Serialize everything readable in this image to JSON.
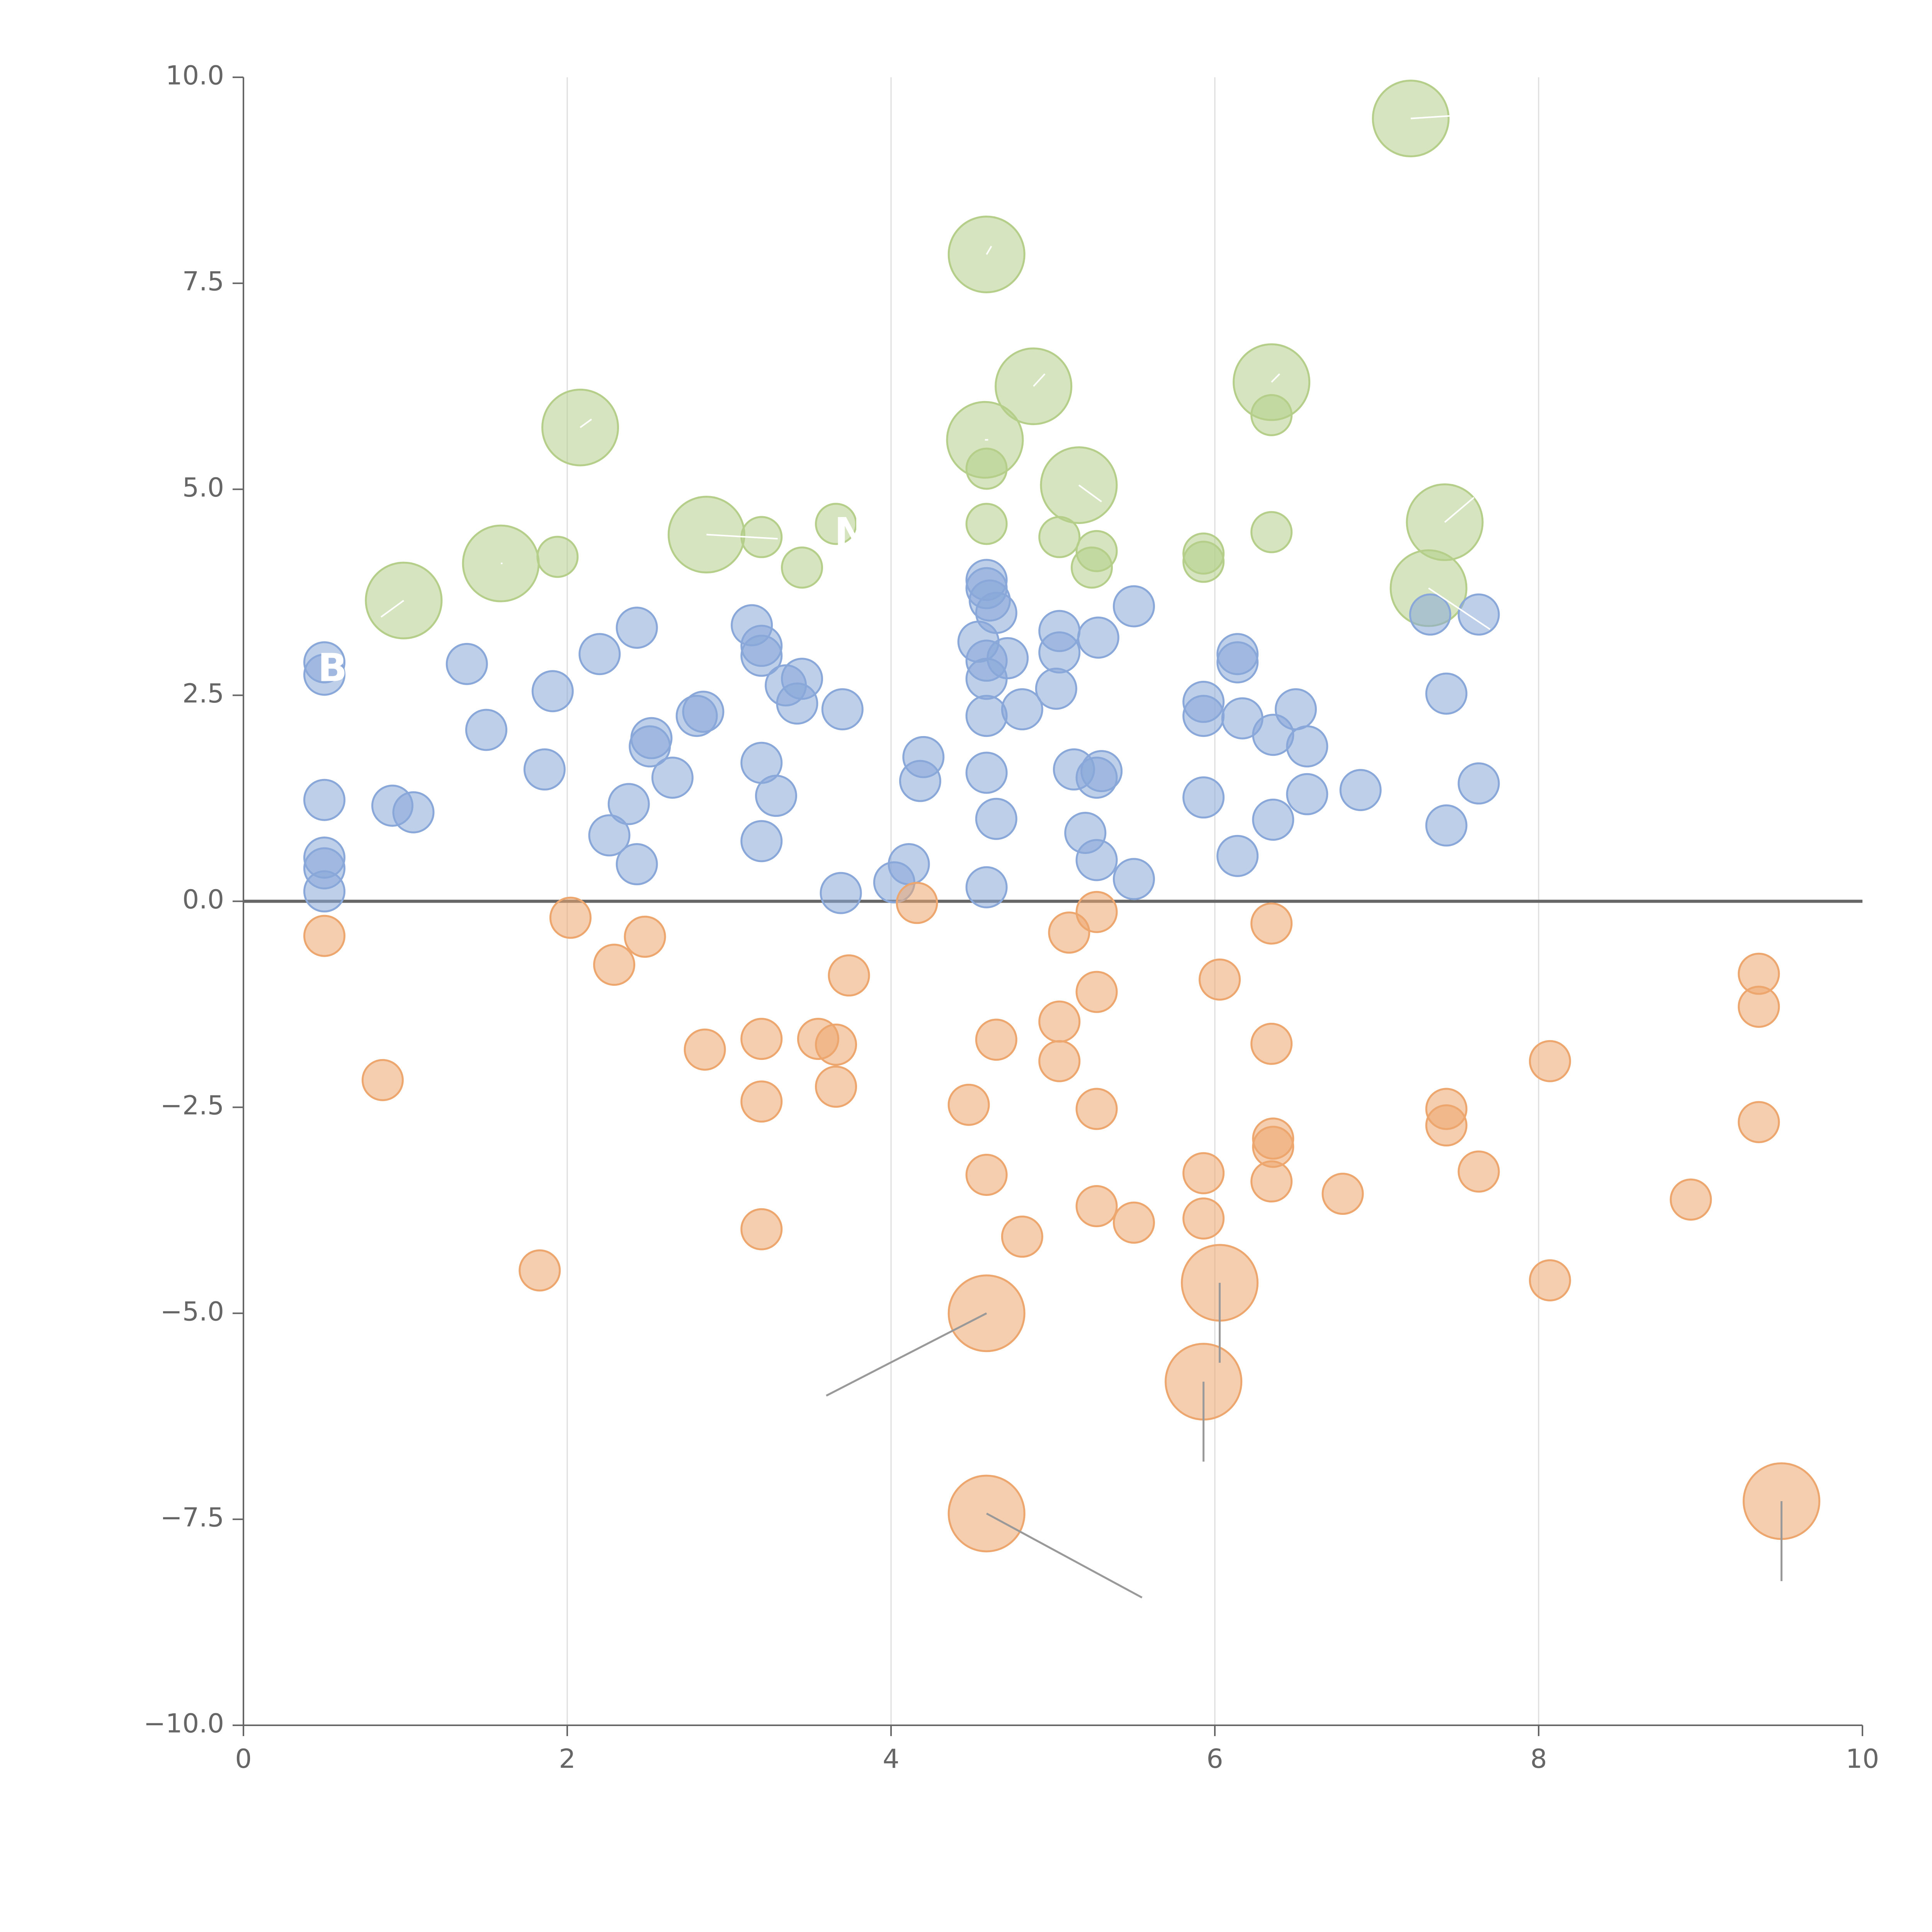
{
  "chart_data": {
    "type": "scatter",
    "title": "",
    "xlabel": "",
    "ylabel": "",
    "xlim": [
      0,
      10
    ],
    "ylim": [
      -10,
      10
    ],
    "grid": "vertical",
    "x_ticks": [
      0,
      2,
      4,
      6,
      8,
      10
    ],
    "y_ticks": [
      -10,
      -7.5,
      -5,
      -2.5,
      0,
      2.5,
      5,
      7.5,
      10
    ],
    "x_tick_labels": [
      "0",
      "2",
      "4",
      "6",
      "8",
      "10"
    ],
    "y_tick_labels": [
      "−10.0",
      "−7.5",
      "−5.0",
      "−2.5",
      "0.0",
      "2.5",
      "5.0",
      "7.5",
      "10.0"
    ],
    "colors": {
      "green": "#b5cf8a",
      "blue": "#89a8d9",
      "orange": "#eda66d",
      "axis": "#666666",
      "grid": "#dddddd",
      "zero_line": "#666666",
      "leader": "#ffffff",
      "leader_dark": "#999999"
    },
    "visible_labels": [
      "N",
      "B"
    ],
    "series": [
      {
        "name": "green",
        "color": "#b5cf8a",
        "points": [
          {
            "x": 7.21,
            "y": 9.5,
            "r": "large",
            "leader": [
              7.6,
              9.55
            ]
          },
          {
            "x": 4.59,
            "y": 7.85,
            "r": "large",
            "leader": [
              4.62,
              7.95
            ]
          },
          {
            "x": 6.35,
            "y": 6.3,
            "r": "large",
            "leader": [
              6.4,
              6.4
            ]
          },
          {
            "x": 4.88,
            "y": 6.25,
            "r": "large",
            "leader": [
              4.95,
              6.4
            ]
          },
          {
            "x": 2.08,
            "y": 5.75,
            "r": "large",
            "leader": [
              2.15,
              5.85
            ]
          },
          {
            "x": 4.58,
            "y": 5.6,
            "r": "large",
            "leader": [
              4.6,
              5.6
            ]
          },
          {
            "x": 5.16,
            "y": 5.05,
            "r": "large",
            "leader": [
              5.3,
              4.85
            ]
          },
          {
            "x": 7.42,
            "y": 4.6,
            "r": "large",
            "leader": [
              7.6,
              4.9
            ]
          },
          {
            "x": 2.86,
            "y": 4.45,
            "r": "large",
            "leader": [
              3.3,
              4.4
            ]
          },
          {
            "x": 1.59,
            "y": 4.1,
            "r": "large",
            "leader": [
              1.6,
              4.1
            ]
          },
          {
            "x": 0.99,
            "y": 3.65,
            "r": "large",
            "leader": [
              0.85,
              3.45
            ]
          },
          {
            "x": 7.32,
            "y": 3.8,
            "r": "large",
            "leader": [
              7.7,
              3.3
            ]
          },
          {
            "x": 6.35,
            "y": 5.9,
            "r": "small"
          },
          {
            "x": 4.59,
            "y": 5.25,
            "r": "small"
          },
          {
            "x": 4.59,
            "y": 4.58,
            "r": "small"
          },
          {
            "x": 3.66,
            "y": 4.58,
            "r": "small"
          },
          {
            "x": 6.35,
            "y": 4.48,
            "r": "small"
          },
          {
            "x": 5.04,
            "y": 4.42,
            "r": "small"
          },
          {
            "x": 3.2,
            "y": 4.42,
            "r": "small"
          },
          {
            "x": 5.27,
            "y": 4.25,
            "r": "small"
          },
          {
            "x": 5.93,
            "y": 4.22,
            "r": "small"
          },
          {
            "x": 1.94,
            "y": 4.18,
            "r": "small"
          },
          {
            "x": 5.93,
            "y": 4.12,
            "r": "small"
          },
          {
            "x": 5.24,
            "y": 4.05,
            "r": "small"
          },
          {
            "x": 3.45,
            "y": 4.05,
            "r": "small"
          }
        ]
      },
      {
        "name": "blue",
        "color": "#89a8d9",
        "points": [
          {
            "x": 4.59,
            "y": 3.9
          },
          {
            "x": 4.59,
            "y": 3.8
          },
          {
            "x": 4.61,
            "y": 3.65
          },
          {
            "x": 5.5,
            "y": 3.58
          },
          {
            "x": 4.65,
            "y": 3.5
          },
          {
            "x": 7.33,
            "y": 3.48
          },
          {
            "x": 7.63,
            "y": 3.48
          },
          {
            "x": 3.14,
            "y": 3.35
          },
          {
            "x": 2.43,
            "y": 3.32
          },
          {
            "x": 5.04,
            "y": 3.28
          },
          {
            "x": 5.28,
            "y": 3.2
          },
          {
            "x": 4.54,
            "y": 3.15
          },
          {
            "x": 3.2,
            "y": 3.1
          },
          {
            "x": 5.04,
            "y": 3.02
          },
          {
            "x": 6.14,
            "y": 3.0
          },
          {
            "x": 2.2,
            "y": 3.0
          },
          {
            "x": 3.2,
            "y": 2.98
          },
          {
            "x": 4.72,
            "y": 2.95
          },
          {
            "x": 4.59,
            "y": 2.92
          },
          {
            "x": 0.5,
            "y": 2.9
          },
          {
            "x": 1.38,
            "y": 2.88
          },
          {
            "x": 6.14,
            "y": 2.9
          },
          {
            "x": 0.5,
            "y": 2.75
          },
          {
            "x": 4.59,
            "y": 2.7
          },
          {
            "x": 3.45,
            "y": 2.7
          },
          {
            "x": 3.35,
            "y": 2.62
          },
          {
            "x": 5.02,
            "y": 2.58
          },
          {
            "x": 1.91,
            "y": 2.55
          },
          {
            "x": 7.43,
            "y": 2.52
          },
          {
            "x": 5.93,
            "y": 2.42
          },
          {
            "x": 3.42,
            "y": 2.4
          },
          {
            "x": 6.5,
            "y": 2.33
          },
          {
            "x": 3.7,
            "y": 2.33
          },
          {
            "x": 4.81,
            "y": 2.33
          },
          {
            "x": 2.84,
            "y": 2.3
          },
          {
            "x": 2.8,
            "y": 2.25
          },
          {
            "x": 5.93,
            "y": 2.25
          },
          {
            "x": 4.59,
            "y": 2.25
          },
          {
            "x": 6.17,
            "y": 2.22
          },
          {
            "x": 1.5,
            "y": 2.08
          },
          {
            "x": 6.36,
            "y": 2.02
          },
          {
            "x": 2.52,
            "y": 1.98
          },
          {
            "x": 6.57,
            "y": 1.88
          },
          {
            "x": 2.51,
            "y": 1.88
          },
          {
            "x": 4.2,
            "y": 1.75
          },
          {
            "x": 3.2,
            "y": 1.68
          },
          {
            "x": 1.86,
            "y": 1.6
          },
          {
            "x": 5.13,
            "y": 1.6
          },
          {
            "x": 5.3,
            "y": 1.58
          },
          {
            "x": 4.59,
            "y": 1.56
          },
          {
            "x": 2.65,
            "y": 1.5
          },
          {
            "x": 5.27,
            "y": 1.5
          },
          {
            "x": 4.18,
            "y": 1.46
          },
          {
            "x": 7.63,
            "y": 1.43
          },
          {
            "x": 6.9,
            "y": 1.35
          },
          {
            "x": 6.57,
            "y": 1.3
          },
          {
            "x": 3.29,
            "y": 1.28
          },
          {
            "x": 5.93,
            "y": 1.26
          },
          {
            "x": 0.5,
            "y": 1.23
          },
          {
            "x": 2.38,
            "y": 1.18
          },
          {
            "x": 0.92,
            "y": 1.16
          },
          {
            "x": 1.05,
            "y": 1.08
          },
          {
            "x": 4.65,
            "y": 1.0
          },
          {
            "x": 6.36,
            "y": 0.99
          },
          {
            "x": 7.43,
            "y": 0.92
          },
          {
            "x": 5.2,
            "y": 0.83
          },
          {
            "x": 2.26,
            "y": 0.8
          },
          {
            "x": 3.2,
            "y": 0.73
          },
          {
            "x": 6.14,
            "y": 0.55
          },
          {
            "x": 0.5,
            "y": 0.53
          },
          {
            "x": 5.27,
            "y": 0.5
          },
          {
            "x": 2.43,
            "y": 0.45
          },
          {
            "x": 4.11,
            "y": 0.45
          },
          {
            "x": 0.5,
            "y": 0.4
          },
          {
            "x": 5.5,
            "y": 0.27
          },
          {
            "x": 4.02,
            "y": 0.23
          },
          {
            "x": 4.59,
            "y": 0.17
          },
          {
            "x": 0.5,
            "y": 0.12
          },
          {
            "x": 3.69,
            "y": 0.1
          }
        ]
      },
      {
        "name": "orange",
        "color": "#eda66d",
        "points": [
          {
            "x": 4.16,
            "y": -0.02,
            "r": "small"
          },
          {
            "x": 5.27,
            "y": -0.13,
            "r": "small"
          },
          {
            "x": 2.02,
            "y": -0.2,
            "r": "small"
          },
          {
            "x": 6.35,
            "y": -0.27,
            "r": "small"
          },
          {
            "x": 5.1,
            "y": -0.38,
            "r": "small"
          },
          {
            "x": 0.5,
            "y": -0.42,
            "r": "small"
          },
          {
            "x": 2.48,
            "y": -0.43,
            "r": "small"
          },
          {
            "x": 2.29,
            "y": -0.77,
            "r": "small"
          },
          {
            "x": 9.36,
            "y": -0.88,
            "r": "small"
          },
          {
            "x": 3.74,
            "y": -0.9,
            "r": "small"
          },
          {
            "x": 6.03,
            "y": -0.95,
            "r": "small"
          },
          {
            "x": 5.27,
            "y": -1.1,
            "r": "small"
          },
          {
            "x": 9.36,
            "y": -1.28,
            "r": "small"
          },
          {
            "x": 5.04,
            "y": -1.46,
            "r": "small"
          },
          {
            "x": 4.65,
            "y": -1.68,
            "r": "small"
          },
          {
            "x": 3.2,
            "y": -1.67,
            "r": "small"
          },
          {
            "x": 3.55,
            "y": -1.67,
            "r": "small"
          },
          {
            "x": 6.35,
            "y": -1.73,
            "r": "small"
          },
          {
            "x": 3.66,
            "y": -1.74,
            "r": "small"
          },
          {
            "x": 2.85,
            "y": -1.8,
            "r": "small"
          },
          {
            "x": 5.04,
            "y": -1.94,
            "r": "small"
          },
          {
            "x": 8.07,
            "y": -1.94,
            "r": "small"
          },
          {
            "x": 0.86,
            "y": -2.17,
            "r": "small"
          },
          {
            "x": 3.66,
            "y": -2.25,
            "r": "small"
          },
          {
            "x": 3.2,
            "y": -2.43,
            "r": "small"
          },
          {
            "x": 4.48,
            "y": -2.47,
            "r": "small"
          },
          {
            "x": 7.43,
            "y": -2.52,
            "r": "small"
          },
          {
            "x": 5.27,
            "y": -2.52,
            "r": "small"
          },
          {
            "x": 9.36,
            "y": -2.68,
            "r": "small"
          },
          {
            "x": 7.43,
            "y": -2.72,
            "r": "small"
          },
          {
            "x": 6.36,
            "y": -2.88,
            "r": "small"
          },
          {
            "x": 6.36,
            "y": -2.98,
            "r": "small"
          },
          {
            "x": 7.63,
            "y": -3.28,
            "r": "small"
          },
          {
            "x": 5.93,
            "y": -3.3,
            "r": "small"
          },
          {
            "x": 4.59,
            "y": -3.32,
            "r": "small"
          },
          {
            "x": 6.35,
            "y": -3.4,
            "r": "small"
          },
          {
            "x": 6.79,
            "y": -3.55,
            "r": "small"
          },
          {
            "x": 8.94,
            "y": -3.62,
            "r": "small"
          },
          {
            "x": 5.27,
            "y": -3.7,
            "r": "small"
          },
          {
            "x": 5.93,
            "y": -3.85,
            "r": "small"
          },
          {
            "x": 5.5,
            "y": -3.9,
            "r": "small"
          },
          {
            "x": 3.2,
            "y": -3.98,
            "r": "small"
          },
          {
            "x": 4.81,
            "y": -4.07,
            "r": "small"
          },
          {
            "x": 1.83,
            "y": -4.48,
            "r": "small"
          },
          {
            "x": 8.07,
            "y": -4.6,
            "r": "small"
          },
          {
            "x": 6.03,
            "y": -4.63,
            "r": "large",
            "leader_dark": [
              6.03,
              -5.6
            ]
          },
          {
            "x": 4.59,
            "y": -5.0,
            "r": "large",
            "leader_dark": [
              3.6,
              -6.0
            ]
          },
          {
            "x": 5.93,
            "y": -5.83,
            "r": "large",
            "leader_dark": [
              5.93,
              -6.8
            ]
          },
          {
            "x": 9.5,
            "y": -7.28,
            "r": "large",
            "leader_dark": [
              9.5,
              -8.25
            ]
          },
          {
            "x": 4.59,
            "y": -7.43,
            "r": "large",
            "leader_dark": [
              5.55,
              -8.45
            ]
          }
        ]
      }
    ],
    "labels": [
      {
        "text": "N",
        "x": 3.75,
        "y": 4.45
      },
      {
        "text": "B",
        "x": 0.55,
        "y": 2.8
      }
    ]
  }
}
